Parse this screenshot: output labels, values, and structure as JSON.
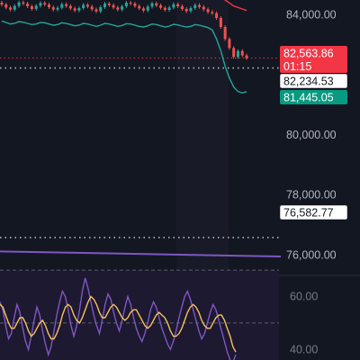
{
  "colors": {
    "background": "#131722",
    "panel_band": "#1e1f2b",
    "candle_up": "#26a69a",
    "candle_down": "#ef5350",
    "band_green": "#26a69a",
    "band_red": "#f23645",
    "purple_line": "#7e57c2",
    "rsi_line": "#7e57c2",
    "rsi_ma": "#f7c25a",
    "osc_band_fill": "#1f1a33",
    "tag_red": "#f23645",
    "tag_white": "#ffffff",
    "tag_green": "#089981"
  },
  "chart_data": [
    {
      "type": "candlestick",
      "y_ticks": [
        "84,000.00",
        "80,000.00",
        "78,000.00",
        "76,000.00"
      ],
      "y_tick_values": [
        84000,
        80000,
        78000,
        76000
      ],
      "ylim": [
        75500,
        84500
      ],
      "price_tags": [
        {
          "value": 82563.86,
          "label": "82,563.86",
          "sub": "01:15",
          "style": "red"
        },
        {
          "value": 82234.53,
          "label": "82,234.53",
          "style": "white"
        },
        {
          "value": 81445.05,
          "label": "81,445.05",
          "style": "green"
        },
        {
          "value": 76582.77,
          "label": "76,582.77",
          "style": "white"
        }
      ],
      "dotted_levels": [
        82234.53,
        76582.77
      ],
      "red_dotted_level": 82563.86,
      "candles_close": [
        84350,
        84250,
        84180,
        84300,
        84420,
        84380,
        84290,
        84200,
        84310,
        84400,
        84350,
        84260,
        84180,
        84240,
        84360,
        84300,
        84220,
        84150,
        84230,
        84340,
        84280,
        84190,
        84120,
        84260,
        84380,
        84330,
        84250,
        84180,
        84290,
        84410,
        84380,
        84300,
        84220,
        84150,
        84280,
        84390,
        84320,
        84240,
        84170,
        84250,
        84360,
        84290,
        84200,
        84130,
        84230,
        84330,
        84270,
        84190,
        84100,
        84060,
        83900,
        83600,
        83200,
        82900,
        82600,
        82800,
        82650,
        82563.86
      ],
      "upper_band": [
        84900,
        84850,
        84820,
        84880,
        84920,
        84900,
        84860,
        84830,
        84870,
        84910,
        84890,
        84850,
        84820,
        84850,
        84900,
        84880,
        84840,
        84810,
        84840,
        84890,
        84870,
        84830,
        84800,
        84850,
        84900,
        84880,
        84850,
        84820,
        84860,
        84910,
        84900,
        84870,
        84840,
        84810,
        84860,
        84900,
        84880,
        84850,
        84820,
        84850,
        84890,
        84870,
        84840,
        84810,
        84840,
        84880,
        84860,
        84830,
        84800,
        84780,
        84700,
        84600,
        84500,
        84400,
        84300,
        84250,
        84200,
        84150
      ],
      "lower_band": [
        83800,
        83750,
        83700,
        83720,
        83780,
        83760,
        83720,
        83680,
        83700,
        83750,
        83740,
        83700,
        83660,
        83680,
        83740,
        83720,
        83680,
        83640,
        83660,
        83720,
        83700,
        83660,
        83620,
        83660,
        83720,
        83700,
        83660,
        83620,
        83650,
        83710,
        83700,
        83660,
        83620,
        83600,
        83640,
        83700,
        83680,
        83640,
        83600,
        83630,
        83690,
        83670,
        83630,
        83600,
        83620,
        83680,
        83660,
        83620,
        83580,
        83500,
        83200,
        82800,
        82300,
        81900,
        81600,
        81450,
        81400,
        81445.05
      ],
      "purple_line": {
        "start": 76120,
        "end": 75950
      }
    },
    {
      "type": "line",
      "y_ticks": [
        "60.00",
        "40.00"
      ],
      "y_tick_values": [
        60,
        40
      ],
      "ylim": [
        36,
        68
      ],
      "band_levels": [
        70,
        50,
        30
      ],
      "series": [
        {
          "role": "rsi",
          "values": [
            58,
            55,
            49,
            44,
            46,
            52,
            57,
            54,
            48,
            43,
            40,
            45,
            51,
            56,
            53,
            47,
            42,
            38,
            41,
            47,
            53,
            58,
            62,
            60,
            55,
            49,
            45,
            49,
            55,
            62,
            67,
            63,
            58,
            53,
            49,
            46,
            51,
            57,
            61,
            59,
            54,
            50,
            47,
            51,
            56,
            60,
            57,
            52,
            48,
            45,
            43,
            46,
            50,
            55,
            58,
            56,
            52,
            48,
            45,
            42,
            40,
            43,
            47,
            52,
            56,
            60,
            62,
            59,
            55,
            51,
            47,
            44,
            46,
            50,
            54,
            57,
            55,
            51,
            47,
            43,
            39,
            36,
            35,
            38
          ]
        },
        {
          "role": "rsi_ma",
          "values": [
            57,
            56,
            53,
            50,
            48,
            48,
            50,
            52,
            52,
            50,
            47,
            45,
            46,
            48,
            50,
            51,
            49,
            46,
            44,
            44,
            46,
            49,
            53,
            56,
            57,
            56,
            53,
            51,
            50,
            52,
            55,
            58,
            60,
            59,
            57,
            54,
            52,
            52,
            54,
            56,
            57,
            56,
            54,
            52,
            51,
            52,
            54,
            55,
            55,
            53,
            51,
            49,
            48,
            49,
            51,
            53,
            54,
            53,
            52,
            50,
            47,
            45,
            45,
            46,
            48,
            51,
            54,
            56,
            57,
            56,
            54,
            51,
            49,
            48,
            48,
            50,
            52,
            53,
            53,
            51,
            48,
            45,
            41,
            39
          ]
        }
      ]
    }
  ]
}
